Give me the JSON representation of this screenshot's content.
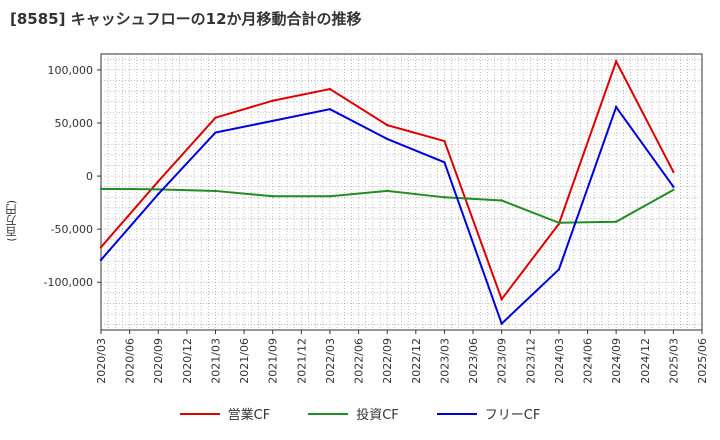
{
  "chart_data": {
    "type": "line",
    "title": "[8585]  キャッシュフローの12か月移動合計の推移",
    "ylabel": "(百万円)",
    "xlabel": "",
    "x": [
      "2020/03",
      "2020/06",
      "2020/09",
      "2020/12",
      "2021/03",
      "2021/06",
      "2021/09",
      "2021/12",
      "2022/03",
      "2022/06",
      "2022/09",
      "2022/12",
      "2023/03",
      "2023/06",
      "2023/09",
      "2023/12",
      "2024/03",
      "2024/06",
      "2024/09",
      "2024/12",
      "2025/03",
      "2025/06"
    ],
    "ylim": [
      -145000,
      115000
    ],
    "yticks": [
      100000,
      50000,
      0,
      -50000,
      -100000
    ],
    "ytick_labels": [
      "100,000",
      "50,000",
      "0",
      "-50,000",
      "-100,000"
    ],
    "grid": true,
    "legend_position": "bottom",
    "series": [
      {
        "name": "営業CF",
        "color": "#dd0000",
        "values": [
          -67000,
          null,
          -5000,
          null,
          55000,
          null,
          71000,
          null,
          82000,
          null,
          48000,
          null,
          33000,
          null,
          -116000,
          null,
          -45000,
          null,
          108000,
          null,
          4000,
          null
        ]
      },
      {
        "name": "投資CF",
        "color": "#228b22",
        "values": [
          -12000,
          null,
          -12500,
          null,
          -14000,
          null,
          -19000,
          null,
          -19000,
          null,
          -14000,
          null,
          -20000,
          null,
          -23000,
          null,
          -44000,
          null,
          -43000,
          null,
          -13000,
          null
        ]
      },
      {
        "name": "フリーCF",
        "color": "#0000dd",
        "values": [
          -79000,
          null,
          -17000,
          null,
          41000,
          null,
          52000,
          null,
          63000,
          null,
          35000,
          null,
          13000,
          null,
          -139000,
          null,
          -88000,
          null,
          65000,
          null,
          -10000,
          null
        ]
      }
    ]
  }
}
